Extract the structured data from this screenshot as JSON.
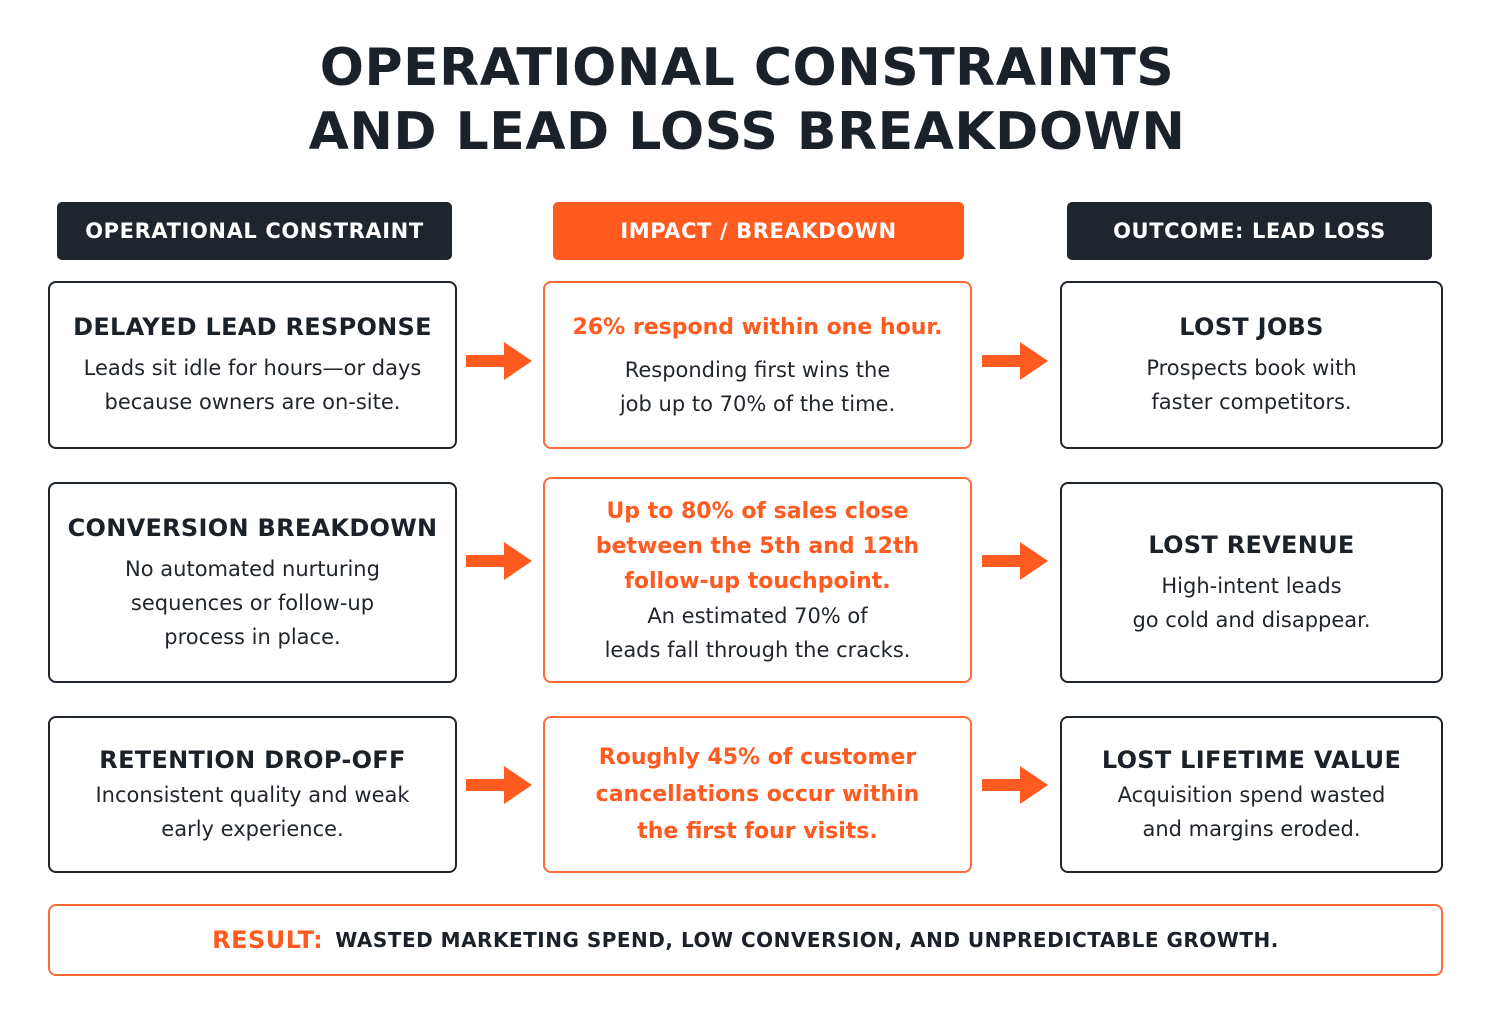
{
  "title": {
    "line1": "OPERATIONAL CONSTRAINTS",
    "line2": "AND LEAD LOSS BREAKDOWN"
  },
  "headers": {
    "constraint": "OPERATIONAL CONSTRAINT",
    "impact": "IMPACT / BREAKDOWN",
    "outcome": "OUTCOME: LEAD LOSS"
  },
  "rows": [
    {
      "constraint": {
        "heading": "DELAYED LEAD RESPONSE",
        "body": "Leads sit idle for hours—or days\nbecause owners are on-site."
      },
      "impact": {
        "highlight": "26% respond within one hour.",
        "body": "Responding first wins the\njob up to 70% of the time."
      },
      "outcome": {
        "heading": "LOST JOBS",
        "body": "Prospects book with\nfaster competitors."
      }
    },
    {
      "constraint": {
        "heading": "CONVERSION BREAKDOWN",
        "body": "No automated nurturing\nsequences or follow-up\nprocess in place."
      },
      "impact": {
        "highlight": "Up to 80% of sales close\nbetween the 5th and 12th\nfollow-up touchpoint.",
        "body": "An estimated 70% of\nleads fall through the cracks."
      },
      "outcome": {
        "heading": "LOST REVENUE",
        "body": "High-intent leads\ngo cold and disappear."
      }
    },
    {
      "constraint": {
        "heading": "RETENTION DROP-OFF",
        "body": "Inconsistent quality and weak\nearly experience."
      },
      "impact": {
        "highlight": "Roughly 45% of customer\ncancellations occur within\nthe first four visits.",
        "body": ""
      },
      "outcome": {
        "heading": "LOST LIFETIME VALUE",
        "body": "Acquisition spend wasted\nand margins eroded."
      }
    }
  ],
  "result": {
    "label": "RESULT:",
    "text": "WASTED MARKETING SPEND, LOW CONVERSION, AND UNPREDICTABLE GROWTH."
  },
  "colors": {
    "accent": "#ff5a1f",
    "dark": "#1e252c"
  },
  "icons": {
    "arrow": "arrow-right-icon"
  }
}
